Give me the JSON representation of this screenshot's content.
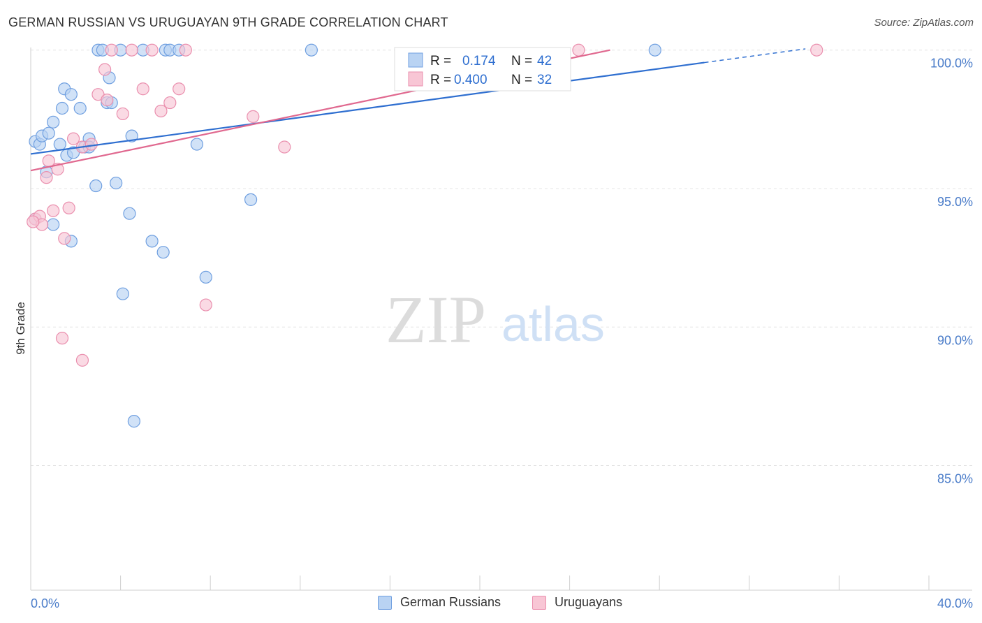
{
  "title": "GERMAN RUSSIAN VS URUGUAYAN 9TH GRADE CORRELATION CHART",
  "source": "Source: ZipAtlas.com",
  "watermark": {
    "zip": "ZIP",
    "atlas": "atlas"
  },
  "legend_box": {
    "rows": [
      {
        "r_label": "R =",
        "r_value": "0.174",
        "n_label": "N =",
        "n_value": "42"
      },
      {
        "r_label": "R =",
        "r_value": "0.400",
        "n_label": "N =",
        "n_value": "32"
      }
    ]
  },
  "bottom_legend": {
    "german": "German Russians",
    "uruguayan": "Uruguayans"
  },
  "colors": {
    "blue_fill": "#b9d3f3",
    "blue_stroke": "#6f9fe0",
    "blue_line": "#2f6fd0",
    "pink_fill": "#f8c6d5",
    "pink_stroke": "#ea8fae",
    "pink_line": "#e0688f",
    "grid": "#e4e4e4",
    "axis_text": "#4a7cc9"
  },
  "chart_data": {
    "type": "scatter",
    "title": "GERMAN RUSSIAN VS URUGUAYAN 9TH GRADE CORRELATION CHART",
    "xlabel": "",
    "ylabel": "9th Grade",
    "xlim": [
      0,
      40
    ],
    "ylim": [
      80.5,
      100.8
    ],
    "x_tick_labels": [
      {
        "value": 0,
        "label": "0.0%"
      },
      {
        "value": 40,
        "label": "40.0%"
      }
    ],
    "y_ticks": [
      {
        "value": 100,
        "label": "100.0%"
      },
      {
        "value": 95,
        "label": "95.0%"
      },
      {
        "value": 90,
        "label": "90.0%"
      },
      {
        "value": 85,
        "label": "85.0%"
      }
    ],
    "series": [
      {
        "name": "German Russians",
        "color": "blue",
        "R": 0.174,
        "N": 42,
        "trend": {
          "x0": 0,
          "y0": 96.25,
          "x1": 30,
          "y1": 99.55,
          "dash_to_x": 34.5
        },
        "points": [
          [
            0.2,
            96.7
          ],
          [
            0.4,
            96.6
          ],
          [
            0.5,
            96.9
          ],
          [
            0.8,
            97.0
          ],
          [
            1.0,
            97.4
          ],
          [
            1.3,
            96.6
          ],
          [
            1.4,
            97.9
          ],
          [
            1.5,
            98.6
          ],
          [
            1.8,
            98.4
          ],
          [
            2.2,
            97.9
          ],
          [
            1.6,
            96.2
          ],
          [
            0.7,
            95.6
          ],
          [
            2.4,
            96.5
          ],
          [
            2.6,
            96.8
          ],
          [
            2.9,
            95.1
          ],
          [
            3.0,
            100.0
          ],
          [
            3.2,
            100.0
          ],
          [
            4.0,
            100.0
          ],
          [
            5.0,
            100.0
          ],
          [
            6.0,
            100.0
          ],
          [
            6.2,
            100.0
          ],
          [
            6.6,
            100.0
          ],
          [
            12.5,
            100.0
          ],
          [
            27.8,
            100.0
          ],
          [
            3.4,
            98.1
          ],
          [
            3.5,
            99.0
          ],
          [
            3.6,
            98.1
          ],
          [
            3.8,
            95.2
          ],
          [
            4.5,
            96.9
          ],
          [
            7.4,
            96.6
          ],
          [
            0.2,
            93.9
          ],
          [
            1.0,
            93.7
          ],
          [
            1.8,
            93.1
          ],
          [
            4.4,
            94.1
          ],
          [
            5.4,
            93.1
          ],
          [
            5.9,
            92.7
          ],
          [
            9.8,
            94.6
          ],
          [
            4.1,
            91.2
          ],
          [
            7.8,
            91.8
          ],
          [
            4.6,
            86.6
          ],
          [
            2.6,
            96.5
          ],
          [
            1.9,
            96.3
          ]
        ]
      },
      {
        "name": "Uruguayans",
        "color": "pink",
        "R": 0.4,
        "N": 32,
        "trend": {
          "x0": 0,
          "y0": 95.65,
          "x1": 25.8,
          "y1": 100.0
        },
        "points": [
          [
            0.2,
            93.9
          ],
          [
            0.4,
            94.0
          ],
          [
            0.5,
            93.7
          ],
          [
            0.7,
            95.4
          ],
          [
            0.8,
            96.0
          ],
          [
            1.2,
            95.7
          ],
          [
            1.0,
            94.2
          ],
          [
            1.7,
            94.3
          ],
          [
            1.5,
            93.2
          ],
          [
            1.9,
            96.8
          ],
          [
            2.3,
            96.5
          ],
          [
            2.7,
            96.6
          ],
          [
            3.0,
            98.4
          ],
          [
            3.3,
            99.3
          ],
          [
            3.4,
            98.2
          ],
          [
            4.1,
            97.7
          ],
          [
            4.5,
            100.0
          ],
          [
            5.0,
            98.6
          ],
          [
            3.6,
            100.0
          ],
          [
            5.4,
            100.0
          ],
          [
            5.8,
            97.8
          ],
          [
            6.2,
            98.1
          ],
          [
            6.6,
            98.6
          ],
          [
            6.9,
            100.0
          ],
          [
            9.9,
            97.6
          ],
          [
            11.3,
            96.5
          ],
          [
            7.8,
            90.8
          ],
          [
            1.4,
            89.6
          ],
          [
            2.3,
            88.8
          ],
          [
            24.4,
            100.0
          ],
          [
            35.0,
            100.0
          ],
          [
            0.1,
            93.8
          ]
        ]
      }
    ]
  }
}
